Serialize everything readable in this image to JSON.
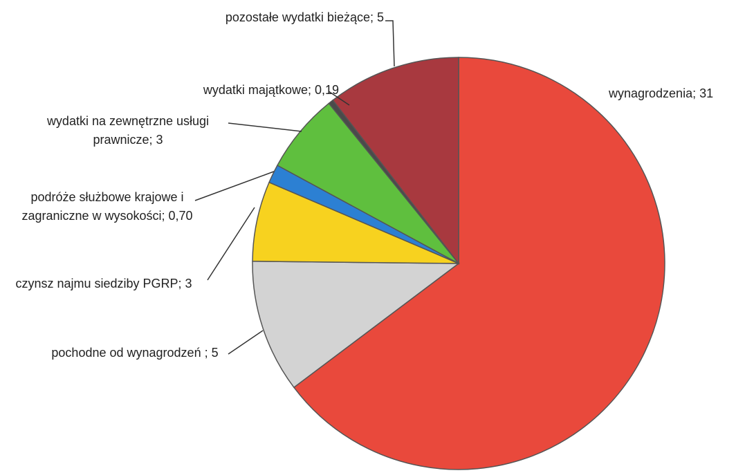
{
  "chart_data": {
    "type": "pie",
    "categories": [
      "wynagrodzenia; 31",
      "pochodne od wynagrodzeń ; 5",
      "czynsz najmu siedziby PGRP; 3",
      "podróże służbowe krajowe i zagraniczne w wysokości; 0,70",
      "wydatki na zewnętrzne usługi prawnicze; 3",
      "wydatki majątkowe; 0,19",
      "pozostałe wydatki bieżące; 5"
    ],
    "values": [
      31,
      5,
      3,
      0.7,
      3,
      0.19,
      5
    ],
    "colors": [
      "#e9493c",
      "#d3d3d3",
      "#f7d21f",
      "#2c80d3",
      "#5fbf3e",
      "#4a4a4a",
      "#a8393f"
    ]
  }
}
